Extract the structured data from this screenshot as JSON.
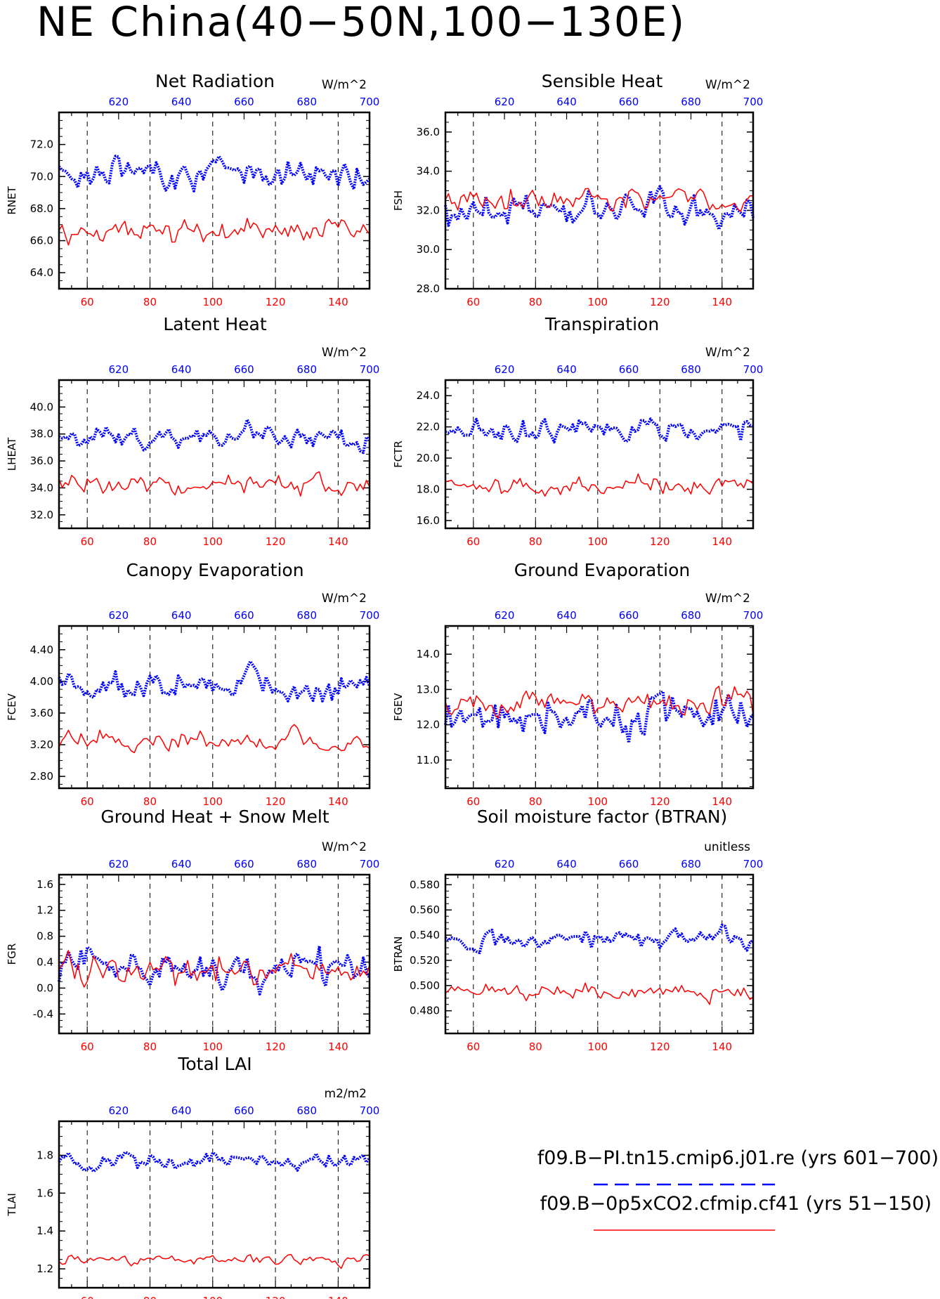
{
  "title": "NE China(40−50N,100−130E)",
  "colors": {
    "case1": "#0000ff",
    "case2": "#ff0000",
    "axis": "#000000"
  },
  "legend": [
    {
      "label": "f09.B−PI.tn15.cmip6.j01.re (yrs 601−700)",
      "color": "#0000ff",
      "style": "dashed"
    },
    {
      "label": "f09.B−0p5xCO2.cfmip.cf41 (yrs 51−150)",
      "color": "#ff0000",
      "style": "solid"
    }
  ],
  "chart_data": [
    {
      "type": "line",
      "title": "Net Radiation",
      "ylabel": "RNET",
      "units": "W/m^2",
      "ylim": [
        63.0,
        74.0
      ],
      "yticks": [
        {
          "v": 64,
          "t": "64.0"
        },
        {
          "v": 66,
          "t": "66.0"
        },
        {
          "v": 68,
          "t": "68.0"
        },
        {
          "v": 70,
          "t": "70.0"
        },
        {
          "v": 72,
          "t": "72.0"
        }
      ],
      "series": [
        {
          "axis": "top",
          "xlim": [
            601,
            700
          ],
          "mean": 70.3,
          "amp": 1.3,
          "range": [
            67.7,
            72.8
          ]
        },
        {
          "axis": "bottom",
          "xlim": [
            51,
            150
          ],
          "mean": 66.6,
          "amp": 1.0,
          "range": [
            63.6,
            68.7
          ]
        }
      ]
    },
    {
      "type": "line",
      "title": "Sensible Heat",
      "ylabel": "FSH",
      "units": "W/m^2",
      "ylim": [
        28.0,
        37.0
      ],
      "yticks": [
        {
          "v": 28,
          "t": "28.0"
        },
        {
          "v": 30,
          "t": "30.0"
        },
        {
          "v": 32,
          "t": "32.0"
        },
        {
          "v": 34,
          "t": "34.0"
        },
        {
          "v": 36,
          "t": "36.0"
        }
      ],
      "series": [
        {
          "axis": "top",
          "xlim": [
            601,
            700
          ],
          "mean": 32.1,
          "amp": 1.3,
          "range": [
            28.2,
            36.2
          ]
        },
        {
          "axis": "bottom",
          "xlim": [
            51,
            150
          ],
          "mean": 32.6,
          "amp": 0.9,
          "range": [
            30.2,
            35.2
          ]
        }
      ]
    },
    {
      "type": "line",
      "title": "Latent Heat",
      "ylabel": "LHEAT",
      "units": "W/m^2",
      "ylim": [
        31.0,
        42.0
      ],
      "yticks": [
        {
          "v": 32,
          "t": "32.0"
        },
        {
          "v": 34,
          "t": "34.0"
        },
        {
          "v": 36,
          "t": "36.0"
        },
        {
          "v": 38,
          "t": "38.0"
        },
        {
          "v": 40,
          "t": "40.0"
        }
      ],
      "series": [
        {
          "axis": "top",
          "xlim": [
            601,
            700
          ],
          "mean": 37.8,
          "amp": 1.2,
          "range": [
            34.2,
            41.2
          ]
        },
        {
          "axis": "bottom",
          "xlim": [
            51,
            150
          ],
          "mean": 34.2,
          "amp": 1.0,
          "range": [
            31.0,
            37.5
          ]
        }
      ]
    },
    {
      "type": "line",
      "title": "Transpiration",
      "ylabel": "FCTR",
      "units": "W/m^2",
      "ylim": [
        15.5,
        25.0
      ],
      "yticks": [
        {
          "v": 16,
          "t": "16.0"
        },
        {
          "v": 18,
          "t": "18.0"
        },
        {
          "v": 20,
          "t": "20.0"
        },
        {
          "v": 22,
          "t": "22.0"
        },
        {
          "v": 24,
          "t": "24.0"
        }
      ],
      "series": [
        {
          "axis": "top",
          "xlim": [
            601,
            700
          ],
          "mean": 21.8,
          "amp": 1.0,
          "range": [
            19.2,
            24.4
          ]
        },
        {
          "axis": "bottom",
          "xlim": [
            51,
            150
          ],
          "mean": 18.2,
          "amp": 0.8,
          "range": [
            15.7,
            20.6
          ]
        }
      ]
    },
    {
      "type": "line",
      "title": "Canopy Evaporation",
      "ylabel": "FCEV",
      "units": "W/m^2",
      "ylim": [
        2.65,
        4.7
      ],
      "yticks": [
        {
          "v": 2.8,
          "t": "2.80"
        },
        {
          "v": 3.2,
          "t": "3.20"
        },
        {
          "v": 3.6,
          "t": "3.60"
        },
        {
          "v": 4.0,
          "t": "4.00"
        },
        {
          "v": 4.4,
          "t": "4.40"
        }
      ],
      "series": [
        {
          "axis": "top",
          "xlim": [
            601,
            700
          ],
          "mean": 3.95,
          "amp": 0.25,
          "range": [
            3.2,
            4.62
          ]
        },
        {
          "axis": "bottom",
          "xlim": [
            51,
            150
          ],
          "mean": 3.25,
          "amp": 0.18,
          "range": [
            2.7,
            3.7
          ]
        }
      ]
    },
    {
      "type": "line",
      "title": "Ground Evaporation",
      "ylabel": "FGEV",
      "units": "W/m^2",
      "ylim": [
        10.2,
        14.8
      ],
      "yticks": [
        {
          "v": 11,
          "t": "11.0"
        },
        {
          "v": 12,
          "t": "12.0"
        },
        {
          "v": 13,
          "t": "13.0"
        },
        {
          "v": 14,
          "t": "14.0"
        }
      ],
      "series": [
        {
          "axis": "top",
          "xlim": [
            601,
            700
          ],
          "mean": 12.3,
          "amp": 0.8,
          "range": [
            10.3,
            14.6
          ]
        },
        {
          "axis": "bottom",
          "xlim": [
            51,
            150
          ],
          "mean": 12.6,
          "amp": 0.6,
          "range": [
            10.9,
            14.4
          ]
        }
      ]
    },
    {
      "type": "line",
      "title": "Ground Heat + Snow Melt",
      "ylabel": "FGR",
      "units": "W/m^2",
      "ylim": [
        -0.7,
        1.75
      ],
      "yticks": [
        {
          "v": -0.4,
          "t": "-0.4"
        },
        {
          "v": 0.0,
          "t": "0.0"
        },
        {
          "v": 0.4,
          "t": "0.4"
        },
        {
          "v": 0.8,
          "t": "0.8"
        },
        {
          "v": 1.2,
          "t": "1.2"
        },
        {
          "v": 1.6,
          "t": "1.6"
        }
      ],
      "series": [
        {
          "axis": "top",
          "xlim": [
            601,
            700
          ],
          "mean": 0.3,
          "amp": 0.4,
          "range": [
            -0.5,
            1.6
          ]
        },
        {
          "axis": "bottom",
          "xlim": [
            51,
            150
          ],
          "mean": 0.3,
          "amp": 0.35,
          "range": [
            -0.55,
            1.05
          ]
        }
      ]
    },
    {
      "type": "line",
      "title": "Soil moisture factor (BTRAN)",
      "ylabel": "BTRAN",
      "units": "unitless",
      "ylim": [
        0.462,
        0.588
      ],
      "yticks": [
        {
          "v": 0.48,
          "t": "0.480"
        },
        {
          "v": 0.5,
          "t": "0.500"
        },
        {
          "v": 0.52,
          "t": "0.520"
        },
        {
          "v": 0.54,
          "t": "0.540"
        },
        {
          "v": 0.56,
          "t": "0.560"
        },
        {
          "v": 0.58,
          "t": "0.580"
        }
      ],
      "series": [
        {
          "axis": "top",
          "xlim": [
            601,
            700
          ],
          "mean": 0.538,
          "amp": 0.012,
          "range": [
            0.503,
            0.579
          ]
        },
        {
          "axis": "bottom",
          "xlim": [
            51,
            150
          ],
          "mean": 0.495,
          "amp": 0.009,
          "range": [
            0.469,
            0.517
          ]
        }
      ]
    },
    {
      "type": "line",
      "title": "Total LAI",
      "ylabel": "TLAI",
      "units": "m2/m2",
      "ylim": [
        1.1,
        1.98
      ],
      "yticks": [
        {
          "v": 1.2,
          "t": "1.2"
        },
        {
          "v": 1.4,
          "t": "1.4"
        },
        {
          "v": 1.6,
          "t": "1.6"
        },
        {
          "v": 1.8,
          "t": "1.8"
        }
      ],
      "series": [
        {
          "axis": "top",
          "xlim": [
            601,
            700
          ],
          "mean": 1.77,
          "amp": 0.06,
          "range": [
            1.57,
            1.95
          ]
        },
        {
          "axis": "bottom",
          "xlim": [
            51,
            150
          ],
          "mean": 1.25,
          "amp": 0.04,
          "range": [
            1.13,
            1.36
          ]
        }
      ]
    }
  ],
  "x_bottom_ticks": [
    "60",
    "80",
    "100",
    "120",
    "140"
  ],
  "x_top_ticks": [
    "620",
    "640",
    "660",
    "680",
    "700"
  ]
}
